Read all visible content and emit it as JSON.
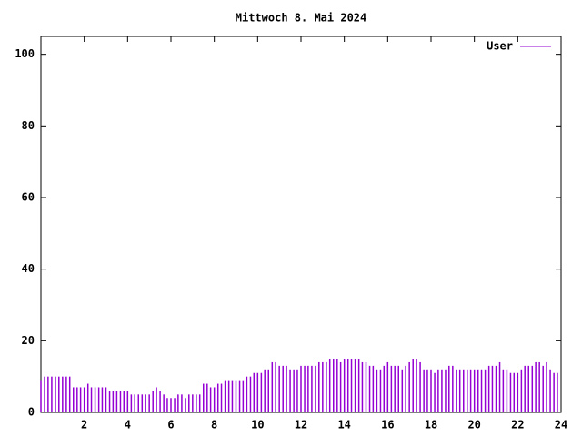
{
  "chart_data": {
    "type": "impulse",
    "title": "Mittwoch 8. Mai 2024",
    "legend": "top-right",
    "series": [
      {
        "name": "User",
        "color": "#9400d3",
        "x": [
          0,
          0.17,
          0.33,
          0.5,
          0.67,
          0.83,
          1,
          1.17,
          1.33,
          1.5,
          1.67,
          1.83,
          2,
          2.17,
          2.33,
          2.5,
          2.67,
          2.83,
          3,
          3.17,
          3.33,
          3.5,
          3.67,
          3.83,
          4,
          4.17,
          4.33,
          4.5,
          4.67,
          4.83,
          5,
          5.17,
          5.33,
          5.5,
          5.67,
          5.83,
          6,
          6.17,
          6.33,
          6.5,
          6.67,
          6.83,
          7,
          7.17,
          7.33,
          7.5,
          7.67,
          7.83,
          8,
          8.17,
          8.33,
          8.5,
          8.67,
          8.83,
          9,
          9.17,
          9.33,
          9.5,
          9.67,
          9.83,
          10,
          10.17,
          10.33,
          10.5,
          10.67,
          10.83,
          11,
          11.17,
          11.33,
          11.5,
          11.67,
          11.83,
          12,
          12.17,
          12.33,
          12.5,
          12.67,
          12.83,
          13,
          13.17,
          13.33,
          13.5,
          13.67,
          13.83,
          14,
          14.17,
          14.33,
          14.5,
          14.67,
          14.83,
          15,
          15.17,
          15.33,
          15.5,
          15.67,
          15.83,
          16,
          16.17,
          16.33,
          16.5,
          16.67,
          16.83,
          17,
          17.17,
          17.33,
          17.5,
          17.67,
          17.83,
          18,
          18.17,
          18.33,
          18.5,
          18.67,
          18.83,
          19,
          19.17,
          19.33,
          19.5,
          19.67,
          19.83,
          20,
          20.17,
          20.33,
          20.5,
          20.67,
          20.83,
          21,
          21.17,
          21.33,
          21.5,
          21.67,
          21.83,
          22,
          22.17,
          22.33,
          22.5,
          22.67,
          22.83,
          23,
          23.17,
          23.33,
          23.5,
          23.67,
          23.83
        ],
        "values": [
          9,
          10,
          10,
          10,
          10,
          10,
          10,
          10,
          10,
          7,
          7,
          7,
          7,
          8,
          7,
          7,
          7,
          7,
          7,
          6,
          6,
          6,
          6,
          6,
          6,
          5,
          5,
          5,
          5,
          5,
          5,
          6,
          7,
          6,
          5,
          4,
          4,
          4,
          5,
          5,
          4,
          5,
          5,
          5,
          5,
          8,
          8,
          7,
          7,
          8,
          8,
          9,
          9,
          9,
          9,
          9,
          9,
          10,
          10,
          11,
          11,
          11,
          12,
          12,
          14,
          14,
          13,
          13,
          13,
          12,
          12,
          12,
          13,
          13,
          13,
          13,
          13,
          14,
          14,
          14,
          15,
          15,
          15,
          14,
          15,
          15,
          15,
          15,
          15,
          14,
          14,
          13,
          13,
          12,
          12,
          13,
          14,
          13,
          13,
          13,
          12,
          13,
          14,
          15,
          15,
          14,
          12,
          12,
          12,
          11,
          12,
          12,
          12,
          13,
          13,
          12,
          12,
          12,
          12,
          12,
          12,
          12,
          12,
          12,
          13,
          13,
          13,
          14,
          12,
          12,
          11,
          11,
          11,
          12,
          13,
          13,
          13,
          14,
          14,
          13,
          14,
          12,
          11,
          11
        ]
      }
    ],
    "xlim": [
      0,
      24
    ],
    "xticks": [
      2,
      4,
      6,
      8,
      10,
      12,
      14,
      16,
      18,
      20,
      22,
      24
    ],
    "ylim": [
      0,
      105
    ],
    "yticks": [
      0,
      20,
      40,
      60,
      80,
      100
    ]
  }
}
